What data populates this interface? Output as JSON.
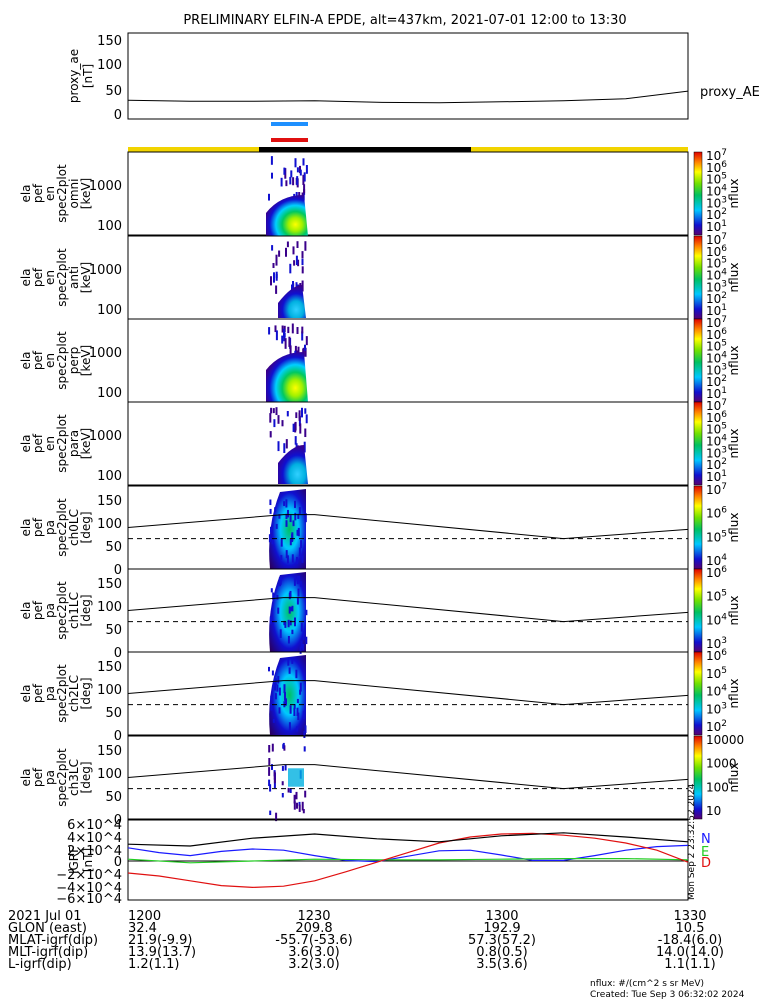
{
  "title": "PRELIMINARY ELFIN-A EPDE, alt=437km, 2021-07-01 12:00 to 13:30",
  "colors": {
    "science_zone": "#f2d400",
    "science_zone_dark": "#000000",
    "bar_blue": "#1e90ff",
    "bar_red": "#e01010",
    "igrf_n": "#1a1aff",
    "igrf_e": "#22cc22",
    "igrf_d": "#e01010"
  },
  "chart_data": [
    {
      "type": "line",
      "panel": "proxy_ae",
      "ylabel": [
        "proxy_ae",
        "[nT]"
      ],
      "legend": "proxy_AE",
      "ylim": [
        -10,
        160
      ],
      "yticks": [
        "150",
        "100",
        "50",
        "0"
      ],
      "x": [
        0,
        10,
        20,
        30,
        40,
        50,
        60,
        70,
        80,
        90
      ],
      "y": [
        27,
        25,
        25,
        26,
        23,
        22,
        24,
        26,
        30,
        45
      ]
    },
    {
      "type": "heatmap",
      "panel": "omni",
      "ylabel": [
        "ela",
        "pef",
        "en",
        "spec2plot",
        "omni",
        "[keV]"
      ],
      "yticks": [
        "1000",
        "100"
      ],
      "colorbar_ticks": [
        "10^7",
        "10^6",
        "10^5",
        "10^4",
        "10^3",
        "10^2",
        "10^1"
      ],
      "colorbar_label": "nflux"
    },
    {
      "type": "heatmap",
      "panel": "anti",
      "ylabel": [
        "ela",
        "pef",
        "en",
        "spec2plot",
        "anti",
        "[keV]"
      ],
      "yticks": [
        "1000",
        "100"
      ],
      "colorbar_ticks": [
        "10^7",
        "10^6",
        "10^5",
        "10^4",
        "10^3",
        "10^2",
        "10^1"
      ],
      "colorbar_label": "nflux"
    },
    {
      "type": "heatmap",
      "panel": "perp",
      "ylabel": [
        "ela",
        "pef",
        "en",
        "spec2plot",
        "perp",
        "[keV]"
      ],
      "yticks": [
        "1000",
        "100"
      ],
      "colorbar_ticks": [
        "10^7",
        "10^6",
        "10^5",
        "10^4",
        "10^3",
        "10^2",
        "10^1"
      ],
      "colorbar_label": "nflux"
    },
    {
      "type": "heatmap",
      "panel": "para",
      "ylabel": [
        "ela",
        "pef",
        "en",
        "spec2plot",
        "para",
        "[keV]"
      ],
      "yticks": [
        "1000",
        "100"
      ],
      "colorbar_ticks": [
        "10^7",
        "10^6",
        "10^5",
        "10^4",
        "10^3",
        "10^2",
        "10^1"
      ],
      "colorbar_label": "nflux"
    },
    {
      "type": "heatmap",
      "panel": "ch0LC",
      "ylabel": [
        "ela",
        "pef",
        "pa",
        "spec2plot",
        "ch0LC",
        "[deg]"
      ],
      "yticks": [
        "150",
        "100",
        "50",
        "0"
      ],
      "colorbar_ticks": [
        "10^7",
        "10^6",
        "10^5",
        "10^4"
      ],
      "colorbar_label": "nflux"
    },
    {
      "type": "heatmap",
      "panel": "ch1LC",
      "ylabel": [
        "ela",
        "pef",
        "pa",
        "spec2plot",
        "ch1LC",
        "[deg]"
      ],
      "yticks": [
        "150",
        "100",
        "50",
        "0"
      ],
      "colorbar_ticks": [
        "10^6",
        "10^5",
        "10^4",
        "10^3"
      ],
      "colorbar_label": "nflux"
    },
    {
      "type": "heatmap",
      "panel": "ch2LC",
      "ylabel": [
        "ela",
        "pef",
        "pa",
        "spec2plot",
        "ch2LC",
        "[deg]"
      ],
      "yticks": [
        "150",
        "100",
        "50",
        "0"
      ],
      "colorbar_ticks": [
        "10^6",
        "10^5",
        "10^4",
        "10^3",
        "10^2"
      ],
      "colorbar_label": "nflux"
    },
    {
      "type": "heatmap",
      "panel": "ch3LC",
      "ylabel": [
        "ela",
        "pef",
        "pa",
        "spec2plot",
        "ch3LC",
        "[deg]"
      ],
      "yticks": [
        "150",
        "100",
        "50",
        "0"
      ],
      "colorbar_ticks": [
        "10000",
        "1000",
        "100",
        "10"
      ],
      "colorbar_label": "nflux"
    },
    {
      "type": "line",
      "panel": "igrf",
      "ylabel": [
        "IGRF",
        "[nT]"
      ],
      "yticks": [
        "6×10^4",
        "4×10^4",
        "2×10^4",
        "0",
        "−2×10^4",
        "−4×10^4",
        "−6×10^4"
      ],
      "legend": [
        "N",
        "E",
        "D"
      ],
      "side_label": "Mon Sep  2 23:32:52 2024",
      "series": [
        {
          "name": "N",
          "x": [
            0,
            5,
            10,
            15,
            20,
            25,
            30,
            35,
            40,
            45,
            50,
            55,
            60,
            65,
            70,
            75,
            80,
            85,
            90
          ],
          "y": [
            22000,
            14000,
            9000,
            16000,
            20000,
            18000,
            9000,
            1000,
            -1000,
            8000,
            17000,
            18000,
            10000,
            1000,
            1000,
            9000,
            18000,
            24000,
            26000
          ]
        },
        {
          "name": "E",
          "x": [
            0,
            10,
            20,
            30,
            40,
            50,
            60,
            70,
            80,
            90
          ],
          "y": [
            3000,
            -3000,
            0,
            3000,
            2000,
            2000,
            3000,
            4000,
            4000,
            2000
          ]
        },
        {
          "name": "D",
          "x": [
            0,
            5,
            10,
            15,
            20,
            25,
            30,
            35,
            40,
            45,
            50,
            55,
            60,
            65,
            70,
            75,
            80,
            85,
            90
          ],
          "y": [
            -20000,
            -25000,
            -33000,
            -41000,
            -44000,
            -42000,
            -33000,
            -18000,
            -2000,
            14000,
            30000,
            40000,
            45000,
            46000,
            43000,
            38000,
            30000,
            18000,
            -2000
          ]
        },
        {
          "name": "black",
          "x": [
            0,
            10,
            20,
            30,
            40,
            50,
            60,
            70,
            80,
            90
          ],
          "y": [
            28000,
            25000,
            38000,
            45000,
            37000,
            32000,
            42000,
            47000,
            40000,
            32000
          ]
        }
      ]
    }
  ],
  "footer": {
    "rows": [
      {
        "label": "2021 Jul 01",
        "values": [
          "1200",
          "1230",
          "1300",
          "1330"
        ]
      },
      {
        "label": "GLON (east)",
        "values": [
          "32.4",
          "209.8",
          "192.9",
          "10.5"
        ]
      },
      {
        "label": "MLAT-igrf(dip)",
        "values": [
          "21.9(-9.9)",
          "-55.7(-53.6)",
          "57.3(57.2)",
          "-18.4(6.0)"
        ]
      },
      {
        "label": "MLT-igrf(dip)",
        "values": [
          "13.9(13.7)",
          "3.6(3.0)",
          "0.8(0.5)",
          "14.0(14.0)"
        ]
      },
      {
        "label": "L-igrf(dip)",
        "values": [
          "1.2(1.1)",
          "3.2(3.0)",
          "3.5(3.6)",
          "1.1(1.1)"
        ]
      }
    ],
    "units_note": "nflux: #/(cm^2 s sr MeV)",
    "created": "Created: Tue Sep  3 06:32:02 2024"
  }
}
